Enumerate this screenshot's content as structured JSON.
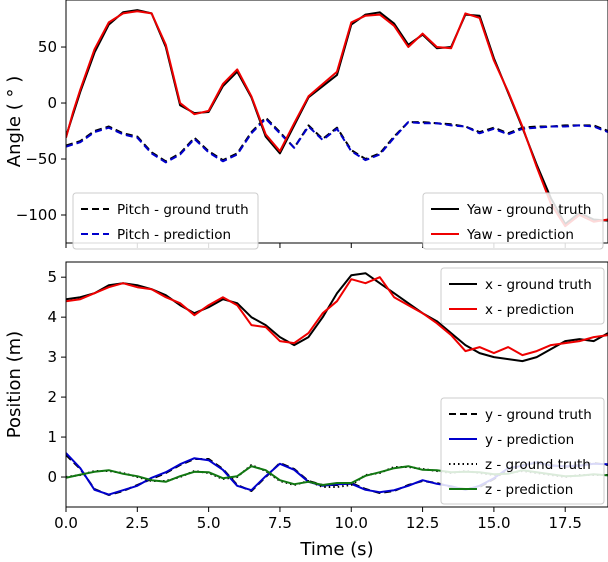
{
  "chart_data": [
    {
      "type": "line",
      "panel": "top",
      "title": "",
      "xlabel": "",
      "ylabel": "Angle ( ° )",
      "xlim": [
        0,
        19
      ],
      "ylim": [
        -125,
        92
      ],
      "xticks": [
        0,
        2.5,
        5,
        7.5,
        10,
        12.5,
        15,
        17.5
      ],
      "yticks": [
        50,
        0,
        -50,
        -100
      ],
      "ytick_labels": [
        "50",
        "0",
        "−50",
        "−100"
      ],
      "legends": [
        {
          "placement": "lower-left",
          "entries": [
            "Pitch - ground truth",
            "Pitch - prediction"
          ]
        },
        {
          "placement": "lower-right",
          "entries": [
            "Yaw - ground truth",
            "Yaw - prediction"
          ]
        }
      ],
      "series": [
        {
          "name": "Pitch - ground truth",
          "color": "#000000",
          "style": "dashed",
          "x": [
            0,
            0.5,
            1,
            1.5,
            2,
            2.5,
            3,
            3.5,
            4,
            4.5,
            5,
            5.5,
            6,
            6.5,
            7,
            7.5,
            8,
            8.5,
            9,
            9.5,
            10,
            10.5,
            11,
            11.5,
            12,
            12.5,
            13,
            13.5,
            14,
            14.5,
            15,
            15.5,
            16,
            16.5,
            17,
            17.5,
            18,
            18.5,
            19
          ],
          "values": [
            -38,
            -34,
            -25,
            -21,
            -27,
            -30,
            -44,
            -52,
            -45,
            -31,
            -43,
            -51,
            -45,
            -26,
            -13,
            -26,
            -40,
            -20,
            -32,
            -22,
            -42,
            -50,
            -45,
            -30,
            -17,
            -17,
            -18,
            -19,
            -21,
            -26,
            -22,
            -27,
            -22,
            -21,
            -21,
            -20,
            -20,
            -20,
            -25
          ]
        },
        {
          "name": "Pitch - prediction",
          "color": "#0000cc",
          "style": "dashed",
          "x": [
            0,
            0.5,
            1,
            1.5,
            2,
            2.5,
            3,
            3.5,
            4,
            4.5,
            5,
            5.5,
            6,
            6.5,
            7,
            7.5,
            8,
            8.5,
            9,
            9.5,
            10,
            10.5,
            11,
            11.5,
            12,
            12.5,
            13,
            13.5,
            14,
            14.5,
            15,
            15.5,
            16,
            16.5,
            17,
            17.5,
            18,
            18.5,
            19
          ],
          "values": [
            -39,
            -35,
            -26,
            -22,
            -28,
            -31,
            -45,
            -53,
            -46,
            -32,
            -44,
            -52,
            -46,
            -27,
            -14,
            -27,
            -40,
            -21,
            -33,
            -23,
            -43,
            -51,
            -46,
            -31,
            -17,
            -18,
            -18,
            -20,
            -21,
            -27,
            -23,
            -28,
            -23,
            -22,
            -21,
            -21,
            -20,
            -21,
            -26
          ]
        },
        {
          "name": "Yaw - ground truth",
          "color": "#000000",
          "style": "solid",
          "x": [
            0,
            0.25,
            0.5,
            1,
            1.5,
            2,
            2.5,
            3,
            3.5,
            4,
            4.5,
            5,
            5.5,
            6,
            6.5,
            7,
            7.5,
            8,
            8.5,
            9,
            9.5,
            10,
            10.5,
            11,
            11.5,
            12,
            12.5,
            13,
            13.5,
            14,
            14.5,
            15,
            15.5,
            16,
            16.5,
            17,
            17.5,
            18,
            18.5,
            19
          ],
          "values": [
            -30,
            -10,
            10,
            45,
            70,
            81,
            83,
            80,
            50,
            -2,
            -9,
            -8,
            15,
            28,
            5,
            -30,
            -45,
            -20,
            5,
            15,
            25,
            70,
            79,
            81,
            71,
            52,
            61,
            49,
            50,
            79,
            78,
            40,
            9,
            -22,
            -55,
            -85,
            -108,
            -98,
            -104,
            -105
          ]
        },
        {
          "name": "Yaw - prediction",
          "color": "#ee0000",
          "style": "solid",
          "x": [
            0,
            0.25,
            0.5,
            1,
            1.5,
            2,
            2.5,
            3,
            3.5,
            4,
            4.5,
            5,
            5.5,
            6,
            6.5,
            7,
            7.5,
            8,
            8.5,
            9,
            9.5,
            10,
            10.5,
            11,
            11.5,
            12,
            12.5,
            13,
            13.5,
            14,
            14.5,
            15,
            15.5,
            16,
            16.5,
            17,
            17.5,
            18,
            18.5,
            19
          ],
          "values": [
            -31,
            -8,
            12,
            48,
            72,
            80,
            82,
            80,
            52,
            0,
            -10,
            -7,
            17,
            30,
            6,
            -28,
            -43,
            -18,
            6,
            17,
            28,
            72,
            78,
            79,
            69,
            50,
            62,
            50,
            49,
            80,
            76,
            38,
            10,
            -21,
            -57,
            -90,
            -110,
            -100,
            -106,
            -104
          ]
        }
      ]
    },
    {
      "type": "line",
      "panel": "bottom",
      "title": "",
      "xlabel": "Time (s)",
      "ylabel": "Position (m)",
      "xlim": [
        0,
        19
      ],
      "ylim": [
        -0.75,
        5.38
      ],
      "xticks": [
        0,
        2.5,
        5,
        7.5,
        10,
        12.5,
        15,
        17.5
      ],
      "xtick_labels": [
        "0.0",
        "2.5",
        "5.0",
        "7.5",
        "10.0",
        "12.5",
        "15.0",
        "17.5"
      ],
      "yticks": [
        0,
        1,
        2,
        3,
        4,
        5
      ],
      "legends": [
        {
          "placement": "top-right",
          "entries": [
            "x - ground truth",
            "x - prediction"
          ]
        },
        {
          "placement": "lower-right",
          "entries": [
            "y - ground truth",
            "y - prediction",
            "z - ground truth",
            "z - prediction"
          ]
        }
      ],
      "series": [
        {
          "name": "x - ground truth",
          "color": "#000000",
          "style": "solid",
          "x": [
            0,
            0.5,
            1,
            1.5,
            2,
            2.5,
            3,
            3.5,
            4,
            4.5,
            5,
            5.5,
            6,
            6.5,
            7,
            7.5,
            8,
            8.5,
            9,
            9.5,
            10,
            10.5,
            11,
            11.5,
            12,
            12.5,
            13,
            13.5,
            14,
            14.5,
            15,
            15.5,
            16,
            16.5,
            17,
            17.5,
            18,
            18.5,
            19
          ],
          "values": [
            4.45,
            4.5,
            4.6,
            4.8,
            4.85,
            4.8,
            4.7,
            4.55,
            4.3,
            4.1,
            4.25,
            4.45,
            4.35,
            4.0,
            3.8,
            3.5,
            3.3,
            3.5,
            4.0,
            4.6,
            5.05,
            5.1,
            4.85,
            4.6,
            4.35,
            4.1,
            3.9,
            3.6,
            3.3,
            3.1,
            3.0,
            2.95,
            2.9,
            3.0,
            3.2,
            3.4,
            3.45,
            3.4,
            3.6
          ]
        },
        {
          "name": "x - prediction",
          "color": "#ee0000",
          "style": "solid",
          "x": [
            0,
            0.5,
            1,
            1.5,
            2,
            2.5,
            3,
            3.5,
            4,
            4.5,
            5,
            5.5,
            6,
            6.5,
            7,
            7.5,
            8,
            8.5,
            9,
            9.5,
            10,
            10.5,
            11,
            11.5,
            12,
            12.5,
            13,
            13.5,
            14,
            14.5,
            15,
            15.5,
            16,
            16.5,
            17,
            17.5,
            18,
            18.5,
            19
          ],
          "values": [
            4.4,
            4.45,
            4.6,
            4.75,
            4.85,
            4.75,
            4.7,
            4.5,
            4.35,
            4.05,
            4.3,
            4.5,
            4.3,
            3.8,
            3.75,
            3.4,
            3.35,
            3.6,
            4.1,
            4.4,
            4.95,
            4.85,
            5.0,
            4.5,
            4.3,
            4.1,
            3.85,
            3.55,
            3.15,
            3.25,
            3.1,
            3.25,
            3.05,
            3.15,
            3.3,
            3.35,
            3.4,
            3.5,
            3.55
          ]
        },
        {
          "name": "y - ground truth",
          "color": "#000000",
          "style": "dashed",
          "x": [
            0,
            0.5,
            1,
            1.5,
            2,
            2.5,
            3,
            3.5,
            4,
            4.5,
            5,
            5.5,
            6,
            6.5,
            7,
            7.5,
            8,
            8.5,
            9,
            9.5,
            10,
            10.5,
            11,
            11.5,
            12,
            12.5,
            13,
            13.5,
            14,
            14.5,
            15,
            15.5,
            16,
            16.5,
            17,
            17.5,
            18,
            18.5,
            19
          ],
          "values": [
            0.55,
            0.2,
            -0.3,
            -0.45,
            -0.35,
            -0.2,
            -0.05,
            0.1,
            0.3,
            0.45,
            0.45,
            0.2,
            -0.2,
            -0.35,
            0.0,
            0.35,
            0.2,
            -0.1,
            -0.2,
            -0.2,
            -0.15,
            -0.3,
            -0.4,
            -0.35,
            -0.2,
            -0.1,
            -0.15,
            -0.25,
            -0.3,
            -0.25,
            -0.05,
            0.2,
            0.3,
            0.35,
            0.3,
            0.25,
            0.3,
            0.35,
            0.3
          ]
        },
        {
          "name": "y - prediction",
          "color": "#0000cc",
          "style": "solid",
          "x": [
            0,
            0.5,
            1,
            1.5,
            2,
            2.5,
            3,
            3.5,
            4,
            4.5,
            5,
            5.5,
            6,
            6.5,
            7,
            7.5,
            8,
            8.5,
            9,
            9.5,
            10,
            10.5,
            11,
            11.5,
            12,
            12.5,
            13,
            13.5,
            14,
            14.5,
            15,
            15.5,
            16,
            16.5,
            17,
            17.5,
            18,
            18.5,
            19
          ],
          "values": [
            0.6,
            0.22,
            -0.32,
            -0.44,
            -0.33,
            -0.22,
            -0.02,
            0.12,
            0.32,
            0.47,
            0.42,
            0.18,
            -0.22,
            -0.33,
            0.02,
            0.33,
            0.18,
            -0.12,
            -0.22,
            -0.18,
            -0.17,
            -0.32,
            -0.38,
            -0.33,
            -0.22,
            -0.08,
            -0.17,
            -0.23,
            -0.32,
            -0.22,
            -0.03,
            0.22,
            0.28,
            0.37,
            0.28,
            0.27,
            0.28,
            0.33,
            0.32
          ]
        },
        {
          "name": "z - ground truth",
          "color": "#000000",
          "style": "dotted",
          "x": [
            0,
            0.5,
            1,
            1.5,
            2,
            2.5,
            3,
            3.5,
            4,
            4.5,
            5,
            5.5,
            6,
            6.5,
            7,
            7.5,
            8,
            8.5,
            9,
            9.5,
            10,
            10.5,
            11,
            11.5,
            12,
            12.5,
            13,
            13.5,
            14,
            14.5,
            15,
            15.5,
            16,
            16.5,
            17,
            17.5,
            18,
            18.5,
            19
          ],
          "values": [
            0.0,
            0.05,
            0.15,
            0.15,
            0.1,
            0.0,
            -0.1,
            -0.1,
            0.0,
            0.15,
            0.1,
            -0.05,
            0.0,
            0.3,
            0.15,
            -0.1,
            -0.2,
            -0.1,
            -0.25,
            -0.25,
            -0.2,
            0.05,
            0.1,
            0.25,
            0.25,
            0.2,
            0.15,
            0.1,
            0.15,
            0.1,
            0.05,
            0.1,
            0.15,
            0.1,
            0.05,
            0.0,
            0.05,
            0.05,
            0.05
          ]
        },
        {
          "name": "z - prediction",
          "color": "#117711",
          "style": "solid",
          "x": [
            0,
            0.5,
            1,
            1.5,
            2,
            2.5,
            3,
            3.5,
            4,
            4.5,
            5,
            5.5,
            6,
            6.5,
            7,
            7.5,
            8,
            8.5,
            9,
            9.5,
            10,
            10.5,
            11,
            11.5,
            12,
            12.5,
            13,
            13.5,
            14,
            14.5,
            15,
            15.5,
            16,
            16.5,
            17,
            17.5,
            18,
            18.5,
            19
          ],
          "values": [
            -0.02,
            0.06,
            0.13,
            0.17,
            0.08,
            0.02,
            -0.08,
            -0.12,
            0.02,
            0.13,
            0.12,
            -0.03,
            0.02,
            0.27,
            0.17,
            -0.08,
            -0.18,
            -0.12,
            -0.2,
            -0.15,
            -0.15,
            0.03,
            0.12,
            0.22,
            0.27,
            0.18,
            0.17,
            0.12,
            0.13,
            0.12,
            0.07,
            0.08,
            0.17,
            0.12,
            0.07,
            0.02,
            0.03,
            0.07,
            0.04
          ]
        }
      ]
    }
  ]
}
